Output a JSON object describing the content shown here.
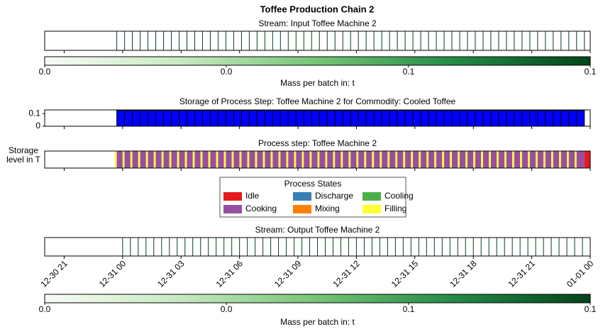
{
  "title": "Toffee Production Chain 2",
  "chart_data": [
    {
      "type": "stream",
      "title": "Stream: Input Toffee Machine 2",
      "xlim": [
        0,
        28
      ],
      "xticks": [
        1,
        4,
        7,
        10,
        13,
        16,
        19,
        22,
        25,
        28
      ],
      "x": [
        3.7,
        4.1,
        4.5,
        4.9,
        5.3,
        5.7,
        6.1,
        6.5,
        6.9,
        7.3,
        7.7,
        8.1,
        8.5,
        8.9,
        9.3,
        9.7,
        10.1,
        10.5,
        10.9,
        11.3,
        11.7,
        12.1,
        12.5,
        12.9,
        13.3,
        13.7,
        14.1,
        14.5,
        14.9,
        15.3,
        15.7,
        16.1,
        16.5,
        16.9,
        17.3,
        17.7,
        18.1,
        18.5,
        18.9,
        19.3,
        19.7,
        20.1,
        20.5,
        20.9,
        21.3,
        21.7,
        22.1,
        22.5,
        22.9,
        23.3,
        23.7,
        24.1,
        24.5,
        24.9,
        25.3,
        25.7,
        26.1,
        26.5,
        26.9,
        27.3,
        27.7
      ],
      "values": [
        0.1,
        0.1,
        0.1,
        0.1,
        0.1,
        0.1,
        0.1,
        0.1,
        0.1,
        0.1,
        0.1,
        0.1,
        0.1,
        0.1,
        0.1,
        0.1,
        0.1,
        0.1,
        0.1,
        0.1,
        0.1,
        0.1,
        0.1,
        0.1,
        0.1,
        0.1,
        0.1,
        0.1,
        0.1,
        0.1,
        0.1,
        0.1,
        0.1,
        0.1,
        0.1,
        0.1,
        0.1,
        0.1,
        0.1,
        0.1,
        0.1,
        0.1,
        0.1,
        0.1,
        0.1,
        0.1,
        0.1,
        0.1,
        0.1,
        0.1,
        0.1,
        0.1,
        0.1,
        0.1,
        0.1,
        0.1,
        0.1,
        0.1,
        0.1,
        0.1,
        0.1
      ],
      "colorbar": {
        "label": "Mass per batch in: t",
        "clim": [
          0,
          0.1
        ],
        "ticks": [
          {
            "value": 0,
            "label": "0.0"
          },
          {
            "value": 0.0333,
            "label": "0.0"
          },
          {
            "value": 0.0667,
            "label": "0.1"
          },
          {
            "value": 0.1,
            "label": "0.1"
          }
        ],
        "colorscale": [
          "#f7fcf5",
          "#c7e9c0",
          "#74c476",
          "#238b45",
          "#00441b"
        ]
      }
    },
    {
      "type": "bar",
      "title": "Storage of Process Step: Toffee Machine 2 for Commodity: Cooled Toffee",
      "ylabel": [
        "Storage",
        "level in T"
      ],
      "color": "#0000ff",
      "xlim": [
        0,
        28
      ],
      "xticks": [
        1,
        4,
        7,
        10,
        13,
        16,
        19,
        22,
        25,
        28
      ],
      "ylim": [
        0,
        0.13
      ],
      "yticks": [
        0,
        0.1
      ],
      "x": [
        3.7,
        4.1,
        4.5,
        4.9,
        5.3,
        5.7,
        6.1,
        6.5,
        6.9,
        7.3,
        7.7,
        8.1,
        8.5,
        8.9,
        9.3,
        9.7,
        10.1,
        10.5,
        10.9,
        11.3,
        11.7,
        12.1,
        12.5,
        12.9,
        13.3,
        13.7,
        14.1,
        14.5,
        14.9,
        15.3,
        15.7,
        16.1,
        16.5,
        16.9,
        17.3,
        17.7,
        18.1,
        18.5,
        18.9,
        19.3,
        19.7,
        20.1,
        20.5,
        20.9,
        21.3,
        21.7,
        22.1,
        22.5,
        22.9,
        23.3,
        23.7,
        24.1,
        24.5,
        24.9,
        25.3,
        25.7,
        26.1,
        26.5,
        26.9,
        27.3
      ],
      "values": [
        0.125,
        0.125,
        0.125,
        0.125,
        0.125,
        0.125,
        0.125,
        0.125,
        0.125,
        0.125,
        0.125,
        0.125,
        0.125,
        0.125,
        0.125,
        0.125,
        0.125,
        0.125,
        0.125,
        0.125,
        0.125,
        0.125,
        0.125,
        0.125,
        0.125,
        0.125,
        0.125,
        0.125,
        0.125,
        0.125,
        0.125,
        0.125,
        0.125,
        0.125,
        0.125,
        0.125,
        0.125,
        0.125,
        0.125,
        0.125,
        0.125,
        0.125,
        0.125,
        0.125,
        0.125,
        0.125,
        0.125,
        0.125,
        0.125,
        0.125,
        0.125,
        0.125,
        0.125,
        0.125,
        0.125,
        0.125,
        0.125,
        0.125,
        0.125,
        0.125
      ]
    },
    {
      "type": "gantt",
      "title": "Process step: Toffee Machine 2",
      "xlim": [
        0,
        28
      ],
      "xticks": [
        1,
        4,
        7,
        10,
        13,
        16,
        19,
        22,
        25,
        28
      ],
      "starts": [
        3.6,
        3.7,
        4.0,
        4.1,
        4.4,
        4.5,
        4.8,
        4.9,
        5.2,
        5.3,
        5.6,
        5.7,
        6.0,
        6.1,
        6.4,
        6.5,
        6.8,
        6.9,
        7.2,
        7.3,
        7.6,
        7.7,
        8.0,
        8.1,
        8.4,
        8.5,
        8.8,
        8.9,
        9.2,
        9.3,
        9.6,
        9.7,
        10.0,
        10.1,
        10.4,
        10.5,
        10.8,
        10.9,
        11.2,
        11.3,
        11.6,
        11.7,
        12.0,
        12.1,
        12.4,
        12.5,
        12.8,
        12.9,
        13.2,
        13.3,
        13.6,
        13.7,
        14.0,
        14.1,
        14.4,
        14.5,
        14.8,
        14.9,
        15.2,
        15.3,
        15.6,
        15.7,
        16.0,
        16.1,
        16.4,
        16.5,
        16.8,
        16.9,
        17.2,
        17.3,
        17.6,
        17.7,
        18.0,
        18.1,
        18.4,
        18.5,
        18.8,
        18.9,
        19.2,
        19.3,
        19.6,
        19.7,
        20.0,
        20.1,
        20.4,
        20.5,
        20.8,
        20.9,
        21.2,
        21.3,
        21.6,
        21.7,
        22.0,
        22.1,
        22.4,
        22.5,
        22.8,
        22.9,
        23.2,
        23.3,
        23.6,
        23.7,
        24.0,
        24.1,
        24.4,
        24.5,
        24.8,
        24.9,
        25.2,
        25.3,
        25.6,
        25.7,
        26.0,
        26.1,
        26.4,
        26.5,
        26.8,
        26.9,
        27.2,
        27.3,
        27.7
      ],
      "states": [
        "Filling",
        "Cooking",
        "Filling",
        "Cooking",
        "Filling",
        "Cooking",
        "Filling",
        "Cooking",
        "Filling",
        "Cooking",
        "Filling",
        "Cooking",
        "Filling",
        "Cooking",
        "Filling",
        "Cooking",
        "Filling",
        "Cooking",
        "Filling",
        "Cooking",
        "Filling",
        "Cooking",
        "Filling",
        "Cooking",
        "Filling",
        "Cooking",
        "Filling",
        "Cooking",
        "Filling",
        "Cooking",
        "Filling",
        "Cooking",
        "Filling",
        "Cooking",
        "Filling",
        "Cooking",
        "Filling",
        "Cooking",
        "Filling",
        "Cooking",
        "Filling",
        "Cooking",
        "Filling",
        "Cooking",
        "Filling",
        "Cooking",
        "Filling",
        "Cooking",
        "Filling",
        "Cooking",
        "Filling",
        "Cooking",
        "Filling",
        "Cooking",
        "Filling",
        "Cooking",
        "Filling",
        "Cooking",
        "Filling",
        "Cooking",
        "Filling",
        "Cooking",
        "Filling",
        "Cooking",
        "Filling",
        "Cooking",
        "Filling",
        "Cooking",
        "Filling",
        "Cooking",
        "Filling",
        "Cooking",
        "Filling",
        "Cooking",
        "Filling",
        "Cooking",
        "Filling",
        "Cooking",
        "Filling",
        "Cooking",
        "Filling",
        "Cooking",
        "Filling",
        "Cooking",
        "Filling",
        "Cooking",
        "Filling",
        "Cooking",
        "Filling",
        "Cooking",
        "Filling",
        "Cooking",
        "Filling",
        "Cooking",
        "Filling",
        "Cooking",
        "Filling",
        "Cooking",
        "Filling",
        "Cooking",
        "Filling",
        "Cooking",
        "Filling",
        "Cooking",
        "Filling",
        "Cooking",
        "Filling",
        "Cooking",
        "Filling",
        "Cooking",
        "Filling",
        "Cooking",
        "Filling",
        "Cooking",
        "Filling",
        "Cooking",
        "Filling",
        "Cooking",
        "Filling",
        "Cooking",
        "Idle"
      ],
      "legend": {
        "title": "Process States",
        "entries": [
          {
            "name": "Idle",
            "color": "#e41a1c"
          },
          {
            "name": "Discharge",
            "color": "#377eb8"
          },
          {
            "name": "Cooling",
            "color": "#4daf4a"
          },
          {
            "name": "Cooking",
            "color": "#984ea3"
          },
          {
            "name": "Mixing",
            "color": "#ff7f00"
          },
          {
            "name": "Filling",
            "color": "#ffff33"
          }
        ]
      }
    },
    {
      "type": "stream",
      "title": "Stream: Output Toffee Machine 2",
      "xlim": [
        0,
        28
      ],
      "xticks": [
        {
          "value": 1,
          "label": "12-30 21"
        },
        {
          "value": 4,
          "label": "12-31 00"
        },
        {
          "value": 7,
          "label": "12-31 03"
        },
        {
          "value": 10,
          "label": "12-31 06"
        },
        {
          "value": 13,
          "label": "12-31 09"
        },
        {
          "value": 16,
          "label": "12-31 12"
        },
        {
          "value": 19,
          "label": "12-31 15"
        },
        {
          "value": 22,
          "label": "12-31 18"
        },
        {
          "value": 25,
          "label": "12-31 21"
        },
        {
          "value": 28,
          "label": "01-01 00"
        }
      ],
      "x": [
        4.0,
        4.4,
        4.8,
        5.2,
        5.6,
        6.0,
        6.4,
        6.8,
        7.2,
        7.6,
        8.0,
        8.4,
        8.8,
        9.2,
        9.6,
        10.0,
        10.4,
        10.8,
        11.2,
        11.6,
        12.0,
        12.4,
        12.8,
        13.2,
        13.6,
        14.0,
        14.4,
        14.8,
        15.2,
        15.6,
        16.0,
        16.4,
        16.8,
        17.2,
        17.6,
        18.0,
        18.4,
        18.8,
        19.2,
        19.6,
        20.0,
        20.4,
        20.8,
        21.2,
        21.6,
        22.0,
        22.4,
        22.8,
        23.2,
        23.6,
        24.0,
        24.4,
        24.8,
        25.2,
        25.6,
        26.0,
        26.4,
        26.8,
        27.2,
        27.6
      ],
      "values": [
        0.1,
        0.1,
        0.1,
        0.1,
        0.1,
        0.1,
        0.1,
        0.1,
        0.1,
        0.1,
        0.1,
        0.1,
        0.1,
        0.1,
        0.1,
        0.1,
        0.1,
        0.1,
        0.1,
        0.1,
        0.1,
        0.1,
        0.1,
        0.1,
        0.1,
        0.1,
        0.1,
        0.1,
        0.1,
        0.1,
        0.1,
        0.1,
        0.1,
        0.1,
        0.1,
        0.1,
        0.1,
        0.1,
        0.1,
        0.1,
        0.1,
        0.1,
        0.1,
        0.1,
        0.1,
        0.1,
        0.1,
        0.1,
        0.1,
        0.1,
        0.1,
        0.1,
        0.1,
        0.1,
        0.1,
        0.1,
        0.1,
        0.1,
        0.1,
        0.1
      ],
      "colorbar": {
        "label": "Mass per batch in: t",
        "clim": [
          0,
          0.1
        ],
        "ticks": [
          {
            "value": 0,
            "label": "0.0"
          },
          {
            "value": 0.0333,
            "label": "0.0"
          },
          {
            "value": 0.0667,
            "label": "0.1"
          },
          {
            "value": 0.1,
            "label": "0.1"
          }
        ],
        "colorscale": [
          "#f7fcf5",
          "#c7e9c0",
          "#74c476",
          "#238b45",
          "#00441b"
        ]
      }
    }
  ]
}
